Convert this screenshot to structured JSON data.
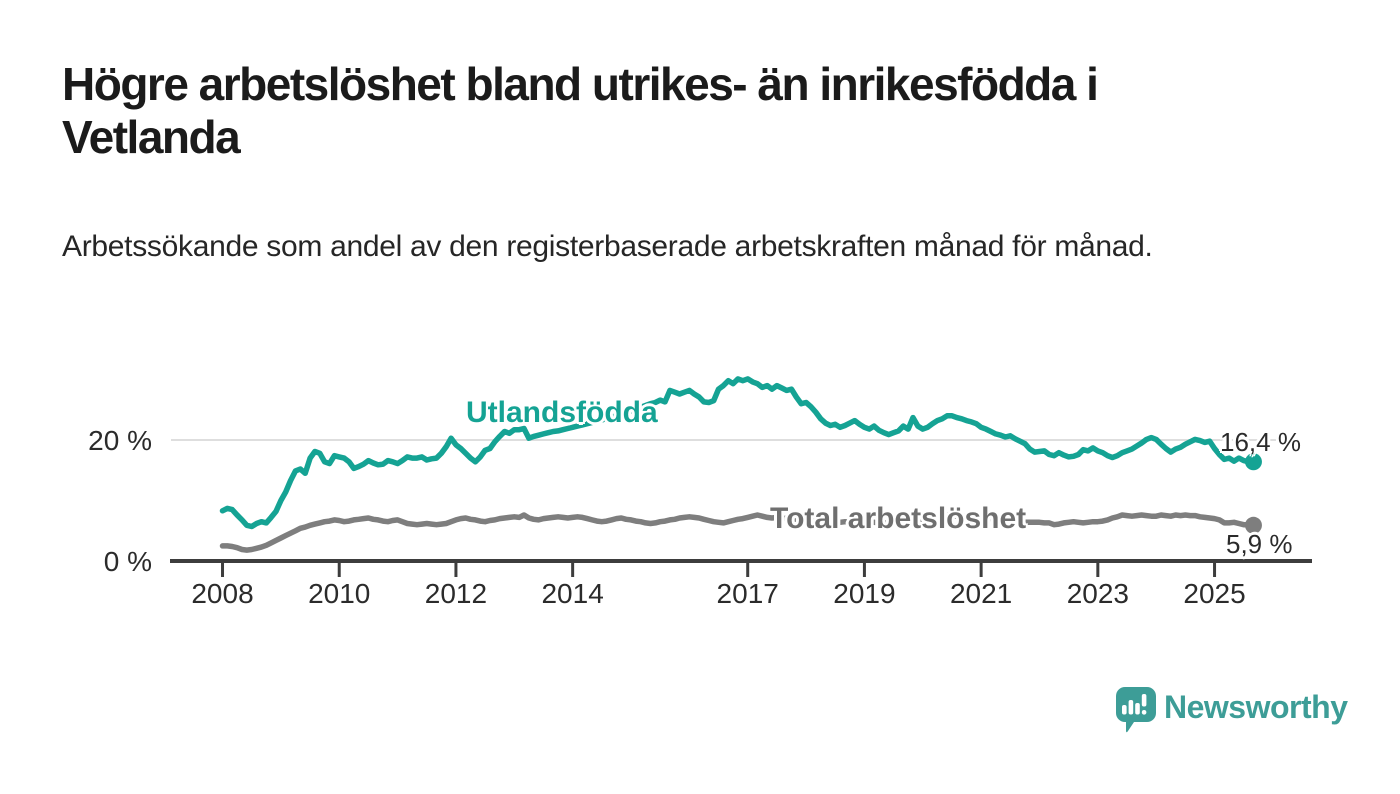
{
  "header": {
    "title": "Högre arbetslöshet bland utrikes- än inrikesfödda i Vetlanda",
    "subtitle": "Arbetssökande som andel av den registerbaserade arbetskraften månad för månad."
  },
  "colors": {
    "utlandsfodda": "#15a394",
    "total_line": "#7e7e7e",
    "total_label": "#6f6f6f",
    "axis": "#3d3d3d",
    "gridline": "#dedede",
    "tick_text": "#2b2b2b",
    "value_text": "#2b2b2b",
    "brand_teal": "#3d9d97"
  },
  "chart_data": {
    "type": "line",
    "x_unit": "monthly, decimal years",
    "y_unit": "percent",
    "xlim": [
      2007.1,
      2026.67
    ],
    "ylim": [
      0,
      20
    ],
    "grid_y_values": [
      20
    ],
    "x_ticks": [
      2008,
      2010,
      2012,
      2014,
      2017,
      2019,
      2021,
      2023,
      2025
    ],
    "y_ticks": [
      {
        "value": 20,
        "label": "20 %"
      },
      {
        "value": 0,
        "label": "0 %"
      }
    ],
    "legend_position": "inline labels on lines",
    "series": [
      {
        "id": "utlandsfodda",
        "name": "Utlandsfödda",
        "color": "#15a394",
        "end_label": "16,4 %",
        "end_value": 16.4,
        "start_year": 2008,
        "start_month": 1,
        "values": [
          8.3,
          8.7,
          8.5,
          7.6,
          6.8,
          5.9,
          5.7,
          6.2,
          6.5,
          6.3,
          7.2,
          8.2,
          10.0,
          11.4,
          13.3,
          14.9,
          15.2,
          14.5,
          17.0,
          18.1,
          17.8,
          16.4,
          16.1,
          17.4,
          17.2,
          17.0,
          16.4,
          15.3,
          15.6,
          16.0,
          16.6,
          16.2,
          15.9,
          16.0,
          16.6,
          16.4,
          16.1,
          16.6,
          17.2,
          17.0,
          17.0,
          17.2,
          16.7,
          16.9,
          17.0,
          17.8,
          18.9,
          20.3,
          19.2,
          18.6,
          17.8,
          17.0,
          16.4,
          17.2,
          18.3,
          18.6,
          19.7,
          20.6,
          21.4,
          21.1,
          21.7,
          21.7,
          21.9,
          20.3,
          20.6,
          20.8,
          21.0,
          21.2,
          21.4,
          21.5,
          21.7,
          21.9,
          22.1,
          22.3,
          22.5,
          22.7,
          22.9,
          23.1,
          23.3,
          23.6,
          23.8,
          24.0,
          24.3,
          24.6,
          24.8,
          25.1,
          25.4,
          25.7,
          26.0,
          26.2,
          26.6,
          26.3,
          28.2,
          27.9,
          27.6,
          27.9,
          28.2,
          27.6,
          27.1,
          26.3,
          26.2,
          26.5,
          28.4,
          29.0,
          29.8,
          29.3,
          30.1,
          29.8,
          30.1,
          29.6,
          29.3,
          28.7,
          29.0,
          28.4,
          29.0,
          28.6,
          28.2,
          28.4,
          27.1,
          26.0,
          26.2,
          25.5,
          24.6,
          23.5,
          22.8,
          22.4,
          22.6,
          22.1,
          22.4,
          22.8,
          23.2,
          22.6,
          22.1,
          21.8,
          22.3,
          21.6,
          21.2,
          20.9,
          21.2,
          21.5,
          22.3,
          21.8,
          23.7,
          22.3,
          21.8,
          22.1,
          22.7,
          23.2,
          23.5,
          24.0,
          24.0,
          23.7,
          23.5,
          23.2,
          23.0,
          22.7,
          22.1,
          21.8,
          21.4,
          21.0,
          20.8,
          20.5,
          20.7,
          20.2,
          19.8,
          19.4,
          18.5,
          18.0,
          18.1,
          18.2,
          17.6,
          17.4,
          17.9,
          17.5,
          17.2,
          17.3,
          17.6,
          18.4,
          18.2,
          18.7,
          18.2,
          17.9,
          17.4,
          17.1,
          17.4,
          17.9,
          18.2,
          18.5,
          19.0,
          19.5,
          20.1,
          20.4,
          20.1,
          19.3,
          18.6,
          18.0,
          18.5,
          18.8,
          19.3,
          19.7,
          20.1,
          19.9,
          19.6,
          19.8,
          18.6,
          17.6,
          16.8,
          17.0,
          16.5,
          17.0,
          16.6,
          16.4,
          16.4
        ]
      },
      {
        "id": "total",
        "name": "Total arbetslöshet",
        "color": "#7e7e7e",
        "end_label": "5,9 %",
        "end_value": 5.9,
        "start_year": 2008,
        "start_month": 1,
        "values": [
          2.5,
          2.5,
          2.4,
          2.2,
          1.9,
          1.8,
          1.9,
          2.1,
          2.3,
          2.6,
          3.0,
          3.4,
          3.8,
          4.2,
          4.6,
          5.0,
          5.4,
          5.6,
          5.9,
          6.1,
          6.3,
          6.5,
          6.6,
          6.8,
          6.7,
          6.5,
          6.6,
          6.8,
          6.9,
          7.0,
          7.1,
          6.9,
          6.8,
          6.6,
          6.5,
          6.7,
          6.8,
          6.5,
          6.2,
          6.1,
          6.0,
          6.1,
          6.2,
          6.1,
          6.0,
          6.1,
          6.2,
          6.5,
          6.8,
          7.0,
          7.1,
          6.9,
          6.8,
          6.6,
          6.5,
          6.7,
          6.8,
          7.0,
          7.1,
          7.2,
          7.3,
          7.2,
          7.6,
          7.1,
          6.9,
          6.8,
          7.0,
          7.1,
          7.2,
          7.3,
          7.2,
          7.1,
          7.2,
          7.3,
          7.2,
          7.0,
          6.8,
          6.6,
          6.5,
          6.6,
          6.8,
          7.0,
          7.1,
          6.9,
          6.8,
          6.6,
          6.5,
          6.3,
          6.2,
          6.3,
          6.5,
          6.6,
          6.8,
          6.9,
          7.1,
          7.2,
          7.3,
          7.2,
          7.1,
          6.9,
          6.7,
          6.5,
          6.4,
          6.3,
          6.5,
          6.7,
          6.9,
          7.0,
          7.2,
          7.4,
          7.6,
          7.4,
          7.2,
          7.1,
          7.2,
          7.1,
          7.0,
          6.9,
          6.9,
          6.8,
          6.8,
          6.7,
          6.6,
          6.6,
          6.5,
          6.5,
          6.4,
          6.4,
          6.5,
          6.4,
          6.4,
          6.5,
          6.5,
          6.4,
          6.4,
          6.3,
          6.3,
          6.3,
          6.4,
          6.4,
          6.5,
          6.5,
          6.6,
          6.6,
          6.6,
          6.8,
          7.2,
          7.4,
          7.6,
          7.6,
          7.5,
          7.4,
          7.4,
          7.3,
          7.2,
          7.2,
          7.2,
          7.1,
          7.0,
          6.9,
          6.8,
          6.7,
          6.6,
          6.6,
          6.5,
          6.4,
          6.4,
          6.4,
          6.4,
          6.3,
          6.3,
          6.0,
          6.1,
          6.3,
          6.4,
          6.5,
          6.4,
          6.3,
          6.4,
          6.5,
          6.5,
          6.6,
          6.8,
          7.1,
          7.3,
          7.6,
          7.5,
          7.4,
          7.5,
          7.6,
          7.5,
          7.4,
          7.4,
          7.6,
          7.5,
          7.4,
          7.6,
          7.5,
          7.6,
          7.5,
          7.5,
          7.3,
          7.2,
          7.1,
          7.0,
          6.8,
          6.3,
          6.3,
          6.4,
          6.2,
          6.0,
          6.0,
          5.9
        ]
      }
    ]
  },
  "footer": {
    "brand": "Newsworthy"
  }
}
